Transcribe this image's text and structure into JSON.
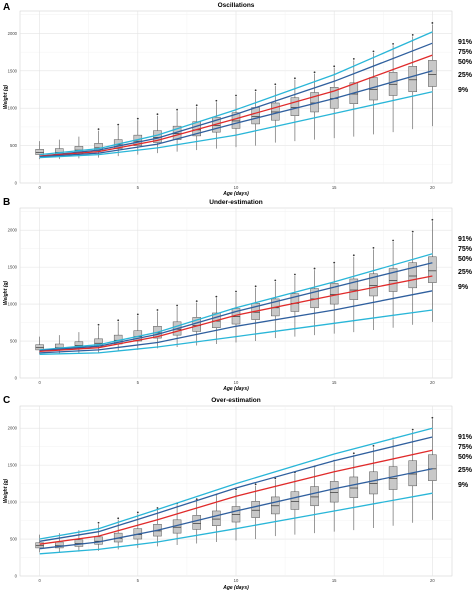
{
  "chart_data": [
    {
      "type": "box",
      "panel": "A",
      "title": "Oscillations",
      "xlabel": "Age (days)",
      "ylabel": "Weight (g)",
      "xlim": [
        -1,
        21
      ],
      "ylim": [
        0,
        2300
      ],
      "xticks": [
        0,
        5,
        10,
        15,
        20
      ],
      "yticks": [
        0,
        500,
        1000,
        1500,
        2000
      ],
      "grid": true,
      "curve_labels": [
        "91%",
        "75%",
        "50%",
        "25%",
        "9%"
      ],
      "boxes": [
        {
          "day": 0,
          "low": 320,
          "q1": 380,
          "median": 410,
          "q3": 450,
          "high": 560
        },
        {
          "day": 1,
          "low": 320,
          "q1": 380,
          "median": 410,
          "q3": 460,
          "high": 580
        },
        {
          "day": 2,
          "low": 330,
          "q1": 400,
          "median": 440,
          "q3": 490,
          "high": 620
        },
        {
          "day": 3,
          "low": 340,
          "q1": 430,
          "median": 470,
          "q3": 530,
          "high": 700
        },
        {
          "day": 4,
          "low": 360,
          "q1": 460,
          "median": 510,
          "q3": 580,
          "high": 760
        },
        {
          "day": 5,
          "low": 380,
          "q1": 500,
          "median": 560,
          "q3": 640,
          "high": 840
        },
        {
          "day": 6,
          "low": 400,
          "q1": 540,
          "median": 610,
          "q3": 700,
          "high": 900
        },
        {
          "day": 7,
          "low": 420,
          "q1": 580,
          "median": 660,
          "q3": 760,
          "high": 960
        },
        {
          "day": 8,
          "low": 440,
          "q1": 630,
          "median": 710,
          "q3": 820,
          "high": 1020
        },
        {
          "day": 9,
          "low": 460,
          "q1": 680,
          "median": 770,
          "q3": 880,
          "high": 1080
        },
        {
          "day": 10,
          "low": 480,
          "q1": 730,
          "median": 830,
          "q3": 940,
          "high": 1150
        },
        {
          "day": 11,
          "low": 500,
          "q1": 790,
          "median": 890,
          "q3": 1010,
          "high": 1220
        },
        {
          "day": 12,
          "low": 540,
          "q1": 840,
          "median": 950,
          "q3": 1070,
          "high": 1300
        },
        {
          "day": 13,
          "low": 560,
          "q1": 900,
          "median": 1010,
          "q3": 1140,
          "high": 1380
        },
        {
          "day": 14,
          "low": 580,
          "q1": 950,
          "median": 1070,
          "q3": 1210,
          "high": 1460
        },
        {
          "day": 15,
          "low": 600,
          "q1": 1000,
          "median": 1130,
          "q3": 1280,
          "high": 1540
        },
        {
          "day": 16,
          "low": 620,
          "q1": 1060,
          "median": 1190,
          "q3": 1340,
          "high": 1640
        },
        {
          "day": 17,
          "low": 650,
          "q1": 1110,
          "median": 1250,
          "q3": 1410,
          "high": 1740
        },
        {
          "day": 18,
          "low": 680,
          "q1": 1170,
          "median": 1320,
          "q3": 1480,
          "high": 1840
        },
        {
          "day": 19,
          "low": 720,
          "q1": 1220,
          "median": 1380,
          "q3": 1560,
          "high": 1960
        },
        {
          "day": 20,
          "low": 760,
          "q1": 1290,
          "median": 1450,
          "q3": 1640,
          "high": 2120
        }
      ],
      "curves": [
        {
          "label": "91%",
          "color": "#29b6d8",
          "points": [
            [
              0,
              380
            ],
            [
              3,
              460
            ],
            [
              6,
              640
            ],
            [
              10,
              980
            ],
            [
              15,
              1450
            ],
            [
              20,
              2020
            ]
          ]
        },
        {
          "label": "75%",
          "color": "#2f5f9e",
          "points": [
            [
              0,
              360
            ],
            [
              3,
              440
            ],
            [
              6,
              600
            ],
            [
              10,
              920
            ],
            [
              15,
              1360
            ],
            [
              20,
              1870
            ]
          ]
        },
        {
          "label": "50%",
          "color": "#e02a2a",
          "points": [
            [
              0,
              360
            ],
            [
              3,
              420
            ],
            [
              6,
              570
            ],
            [
              10,
              860
            ],
            [
              15,
              1230
            ],
            [
              20,
              1710
            ]
          ]
        },
        {
          "label": "25%",
          "color": "#2f5f9e",
          "points": [
            [
              0,
              350
            ],
            [
              3,
              400
            ],
            [
              6,
              520
            ],
            [
              10,
              800
            ],
            [
              15,
              1130
            ],
            [
              20,
              1500
            ]
          ]
        },
        {
          "label": "9%",
          "color": "#29b6d8",
          "points": [
            [
              0,
              340
            ],
            [
              3,
              380
            ],
            [
              6,
              470
            ],
            [
              10,
              640
            ],
            [
              15,
              930
            ],
            [
              20,
              1220
            ]
          ]
        }
      ]
    },
    {
      "type": "box",
      "panel": "B",
      "title": "Under-estimation",
      "xlabel": "Age (days)",
      "ylabel": "Weight (g)",
      "xlim": [
        -1,
        21
      ],
      "ylim": [
        0,
        2300
      ],
      "xticks": [
        0,
        5,
        10,
        15,
        20
      ],
      "yticks": [
        0,
        500,
        1000,
        1500,
        2000
      ],
      "grid": true,
      "curve_labels": [
        "91%",
        "75%",
        "50%",
        "25%",
        "9%"
      ],
      "boxes": [
        {
          "day": 0,
          "low": 320,
          "q1": 380,
          "median": 410,
          "q3": 450,
          "high": 560
        },
        {
          "day": 1,
          "low": 320,
          "q1": 380,
          "median": 410,
          "q3": 460,
          "high": 580
        },
        {
          "day": 2,
          "low": 330,
          "q1": 400,
          "median": 440,
          "q3": 490,
          "high": 620
        },
        {
          "day": 3,
          "low": 340,
          "q1": 430,
          "median": 470,
          "q3": 530,
          "high": 700
        },
        {
          "day": 4,
          "low": 360,
          "q1": 460,
          "median": 510,
          "q3": 580,
          "high": 760
        },
        {
          "day": 5,
          "low": 380,
          "q1": 500,
          "median": 560,
          "q3": 640,
          "high": 840
        },
        {
          "day": 6,
          "low": 400,
          "q1": 540,
          "median": 610,
          "q3": 700,
          "high": 900
        },
        {
          "day": 7,
          "low": 420,
          "q1": 580,
          "median": 660,
          "q3": 760,
          "high": 960
        },
        {
          "day": 8,
          "low": 440,
          "q1": 630,
          "median": 710,
          "q3": 820,
          "high": 1020
        },
        {
          "day": 9,
          "low": 460,
          "q1": 680,
          "median": 770,
          "q3": 880,
          "high": 1080
        },
        {
          "day": 10,
          "low": 480,
          "q1": 730,
          "median": 830,
          "q3": 940,
          "high": 1150
        },
        {
          "day": 11,
          "low": 500,
          "q1": 790,
          "median": 890,
          "q3": 1010,
          "high": 1220
        },
        {
          "day": 12,
          "low": 540,
          "q1": 840,
          "median": 950,
          "q3": 1070,
          "high": 1300
        },
        {
          "day": 13,
          "low": 560,
          "q1": 900,
          "median": 1010,
          "q3": 1140,
          "high": 1380
        },
        {
          "day": 14,
          "low": 580,
          "q1": 950,
          "median": 1070,
          "q3": 1210,
          "high": 1460
        },
        {
          "day": 15,
          "low": 600,
          "q1": 1000,
          "median": 1130,
          "q3": 1280,
          "high": 1540
        },
        {
          "day": 16,
          "low": 620,
          "q1": 1060,
          "median": 1190,
          "q3": 1340,
          "high": 1640
        },
        {
          "day": 17,
          "low": 650,
          "q1": 1110,
          "median": 1250,
          "q3": 1410,
          "high": 1740
        },
        {
          "day": 18,
          "low": 680,
          "q1": 1170,
          "median": 1320,
          "q3": 1480,
          "high": 1840
        },
        {
          "day": 19,
          "low": 720,
          "q1": 1220,
          "median": 1380,
          "q3": 1560,
          "high": 1960
        },
        {
          "day": 20,
          "low": 760,
          "q1": 1290,
          "median": 1450,
          "q3": 1640,
          "high": 2120
        }
      ],
      "curves": [
        {
          "label": "91%",
          "color": "#29b6d8",
          "points": [
            [
              0,
              380
            ],
            [
              3,
              450
            ],
            [
              6,
              620
            ],
            [
              10,
              950
            ],
            [
              15,
              1300
            ],
            [
              20,
              1680
            ]
          ]
        },
        {
          "label": "75%",
          "color": "#2f5f9e",
          "points": [
            [
              0,
              370
            ],
            [
              3,
              430
            ],
            [
              6,
              590
            ],
            [
              10,
              900
            ],
            [
              15,
              1230
            ],
            [
              20,
              1560
            ]
          ]
        },
        {
          "label": "50%",
          "color": "#e02a2a",
          "points": [
            [
              0,
              360
            ],
            [
              3,
              410
            ],
            [
              6,
              560
            ],
            [
              10,
              850
            ],
            [
              15,
              1120
            ],
            [
              20,
              1380
            ]
          ]
        },
        {
          "label": "25%",
          "color": "#2f5f9e",
          "points": [
            [
              0,
              340
            ],
            [
              3,
              380
            ],
            [
              6,
              480
            ],
            [
              10,
              700
            ],
            [
              15,
              920
            ],
            [
              20,
              1180
            ]
          ]
        },
        {
          "label": "9%",
          "color": "#29b6d8",
          "points": [
            [
              0,
              320
            ],
            [
              3,
              340
            ],
            [
              6,
              420
            ],
            [
              10,
              560
            ],
            [
              15,
              740
            ],
            [
              20,
              920
            ]
          ]
        }
      ]
    },
    {
      "type": "box",
      "panel": "C",
      "title": "Over-estimation",
      "xlabel": "Age (days)",
      "ylabel": "Weight (g)",
      "xlim": [
        -1,
        21
      ],
      "ylim": [
        0,
        2300
      ],
      "xticks": [
        0,
        5,
        10,
        15,
        20
      ],
      "yticks": [
        0,
        500,
        1000,
        1500,
        2000
      ],
      "grid": true,
      "curve_labels": [
        "91%",
        "75%",
        "50%",
        "25%",
        "9%"
      ],
      "boxes": [
        {
          "day": 0,
          "low": 320,
          "q1": 380,
          "median": 410,
          "q3": 450,
          "high": 560
        },
        {
          "day": 1,
          "low": 320,
          "q1": 380,
          "median": 410,
          "q3": 460,
          "high": 580
        },
        {
          "day": 2,
          "low": 330,
          "q1": 400,
          "median": 440,
          "q3": 490,
          "high": 620
        },
        {
          "day": 3,
          "low": 340,
          "q1": 430,
          "median": 470,
          "q3": 530,
          "high": 700
        },
        {
          "day": 4,
          "low": 360,
          "q1": 460,
          "median": 510,
          "q3": 580,
          "high": 760
        },
        {
          "day": 5,
          "low": 380,
          "q1": 500,
          "median": 560,
          "q3": 640,
          "high": 840
        },
        {
          "day": 6,
          "low": 400,
          "q1": 540,
          "median": 610,
          "q3": 700,
          "high": 900
        },
        {
          "day": 7,
          "low": 420,
          "q1": 580,
          "median": 660,
          "q3": 760,
          "high": 960
        },
        {
          "day": 8,
          "low": 440,
          "q1": 630,
          "median": 710,
          "q3": 820,
          "high": 1020
        },
        {
          "day": 9,
          "low": 460,
          "q1": 680,
          "median": 770,
          "q3": 880,
          "high": 1080
        },
        {
          "day": 10,
          "low": 480,
          "q1": 730,
          "median": 830,
          "q3": 940,
          "high": 1150
        },
        {
          "day": 11,
          "low": 500,
          "q1": 790,
          "median": 890,
          "q3": 1010,
          "high": 1220
        },
        {
          "day": 12,
          "low": 540,
          "q1": 840,
          "median": 950,
          "q3": 1070,
          "high": 1300
        },
        {
          "day": 13,
          "low": 560,
          "q1": 900,
          "median": 1010,
          "q3": 1140,
          "high": 1380
        },
        {
          "day": 14,
          "low": 580,
          "q1": 950,
          "median": 1070,
          "q3": 1210,
          "high": 1460
        },
        {
          "day": 15,
          "low": 600,
          "q1": 1000,
          "median": 1130,
          "q3": 1280,
          "high": 1540
        },
        {
          "day": 16,
          "low": 620,
          "q1": 1060,
          "median": 1190,
          "q3": 1340,
          "high": 1640
        },
        {
          "day": 17,
          "low": 650,
          "q1": 1110,
          "median": 1250,
          "q3": 1410,
          "high": 1740
        },
        {
          "day": 18,
          "low": 680,
          "q1": 1170,
          "median": 1320,
          "q3": 1480,
          "high": 1840
        },
        {
          "day": 19,
          "low": 720,
          "q1": 1220,
          "median": 1380,
          "q3": 1560,
          "high": 1960
        },
        {
          "day": 20,
          "low": 760,
          "q1": 1290,
          "median": 1450,
          "q3": 1640,
          "high": 2120
        }
      ],
      "curves": [
        {
          "label": "91%",
          "color": "#29b6d8",
          "points": [
            [
              0,
              500
            ],
            [
              3,
              640
            ],
            [
              6,
              900
            ],
            [
              10,
              1250
            ],
            [
              15,
              1650
            ],
            [
              20,
              2000
            ]
          ]
        },
        {
          "label": "75%",
          "color": "#2f5f9e",
          "points": [
            [
              0,
              470
            ],
            [
              3,
              600
            ],
            [
              6,
              850
            ],
            [
              10,
              1190
            ],
            [
              15,
              1560
            ],
            [
              20,
              1880
            ]
          ]
        },
        {
          "label": "50%",
          "color": "#e02a2a",
          "points": [
            [
              0,
              430
            ],
            [
              3,
              540
            ],
            [
              6,
              760
            ],
            [
              10,
              1080
            ],
            [
              15,
              1410
            ],
            [
              20,
              1700
            ]
          ]
        },
        {
          "label": "25%",
          "color": "#2f5f9e",
          "points": [
            [
              0,
              370
            ],
            [
              3,
              460
            ],
            [
              6,
              620
            ],
            [
              10,
              880
            ],
            [
              15,
              1180
            ],
            [
              20,
              1450
            ]
          ]
        },
        {
          "label": "9%",
          "color": "#29b6d8",
          "points": [
            [
              0,
              300
            ],
            [
              3,
              360
            ],
            [
              6,
              460
            ],
            [
              10,
              640
            ],
            [
              15,
              880
            ],
            [
              20,
              1120
            ]
          ]
        }
      ]
    }
  ]
}
